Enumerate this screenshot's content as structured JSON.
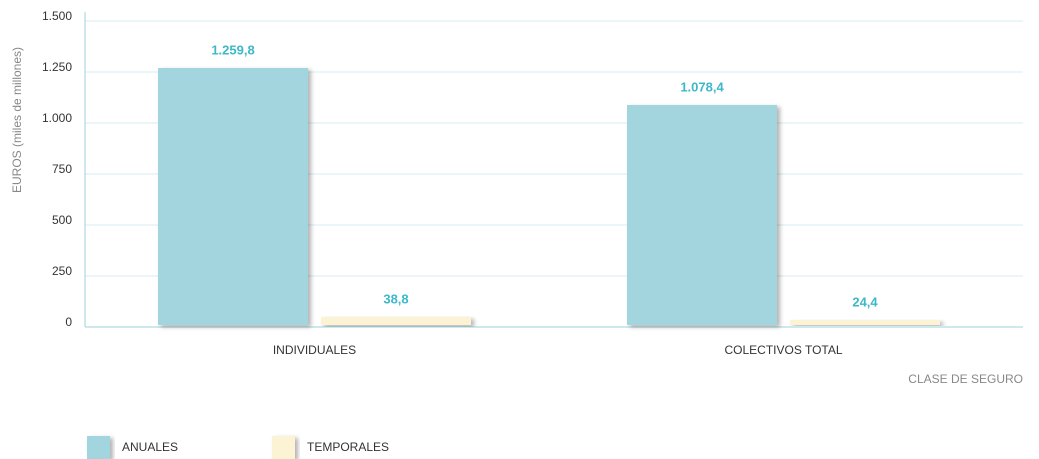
{
  "chart_data": {
    "type": "bar",
    "categories": [
      "INDIVIDUALES",
      "COLECTIVOS TOTAL"
    ],
    "series": [
      {
        "name": "ANUALES",
        "color": "#a3d5df",
        "values": [
          1259.8,
          1078.4
        ],
        "value_labels": [
          "1.259,8",
          "1.078,4"
        ]
      },
      {
        "name": "TEMPORALES",
        "color": "#fbf3d3",
        "values": [
          38.8,
          24.4
        ],
        "value_labels": [
          "38,8",
          "24,4"
        ]
      }
    ],
    "ylabel": "EUROS (miles de millones)",
    "xlabel": "CLASE DE SEGURO",
    "ylim": [
      0,
      1500
    ],
    "yticks": [
      0,
      250,
      500,
      750,
      {
        "value": 1000,
        "label": "1.000"
      },
      {
        "value": 1250,
        "label": "1.250"
      },
      {
        "value": 1500,
        "label": "1.500"
      }
    ],
    "grid": true,
    "legend": "bottom-left"
  }
}
